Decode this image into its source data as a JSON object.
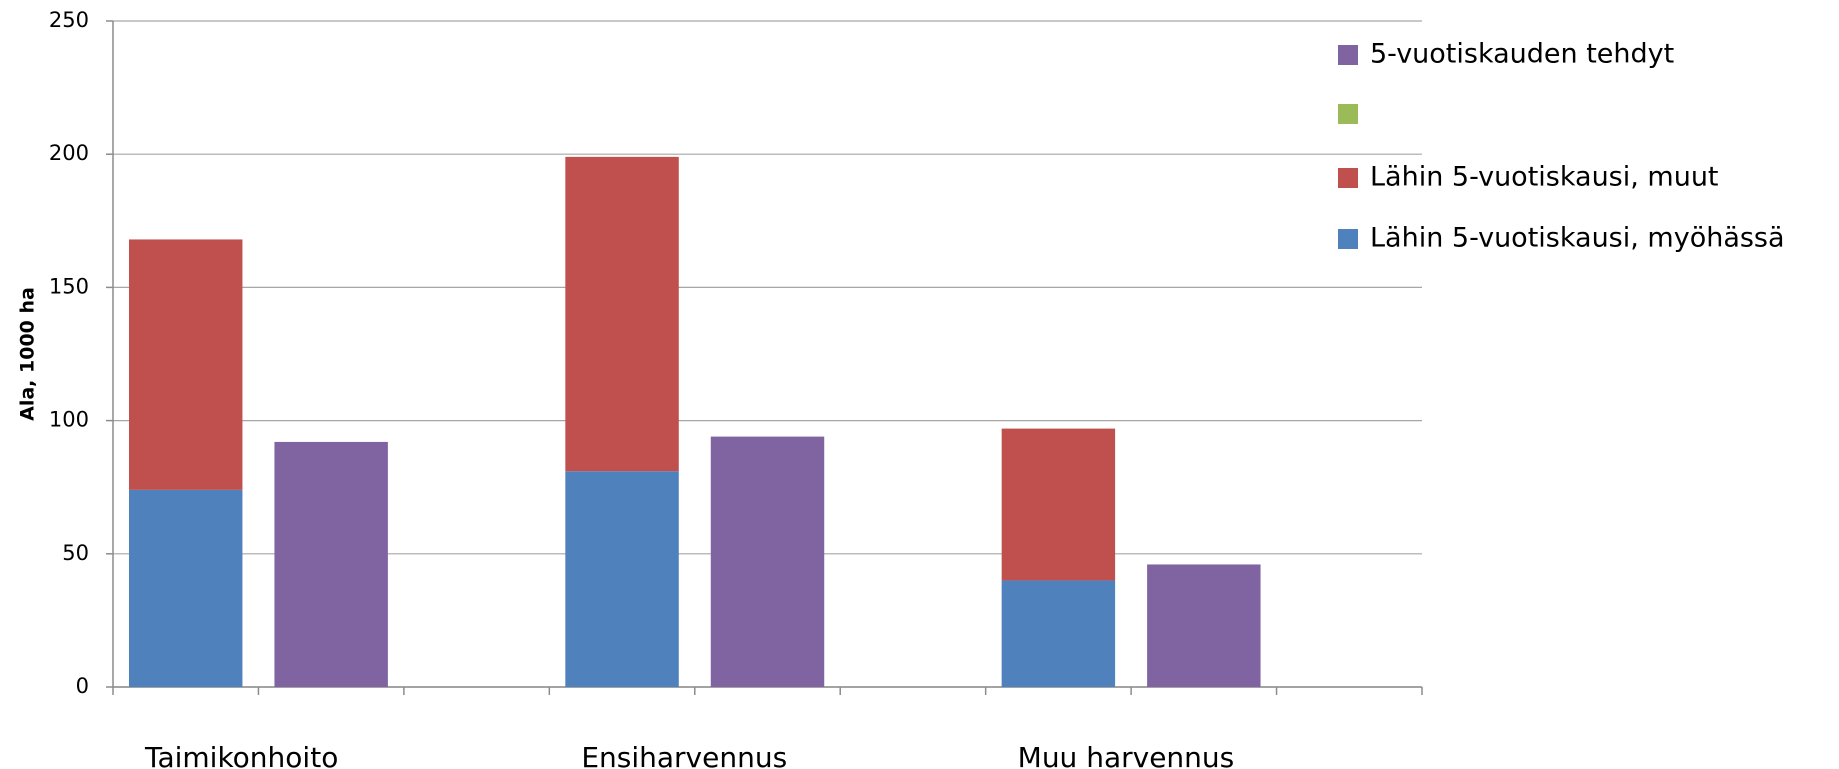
{
  "chart_data": {
    "type": "stacked_bar",
    "y_label": "Ala, 1000 ha",
    "categories": [
      "Taimikonhoito",
      null,
      null,
      "Ensiharvennus",
      null,
      null,
      "Muu harvennus",
      null,
      null
    ],
    "series": [
      {
        "name": "Lähin 5-vuotiskausi, myöhässä",
        "color": "#4f81bd",
        "values": [
          74,
          null,
          null,
          81,
          null,
          null,
          40,
          null,
          null
        ]
      },
      {
        "name": "Lähin 5-vuotiskausi, muut",
        "color": "#c0504d",
        "values": [
          94,
          null,
          null,
          118,
          null,
          null,
          57,
          null,
          null
        ]
      },
      {
        "color": "#9bbb59",
        "values": [
          null,
          null,
          null,
          null,
          null,
          null,
          null,
          null,
          null
        ]
      },
      {
        "name": "5-vuotiskauden tehdyt",
        "color": "#8064a2",
        "values": [
          null,
          92,
          null,
          null,
          94,
          null,
          null,
          46,
          null
        ]
      }
    ],
    "ylim": [
      0,
      250
    ],
    "yticks": [
      0,
      50,
      100,
      150,
      200,
      250
    ],
    "grid": true,
    "legend": "right"
  }
}
